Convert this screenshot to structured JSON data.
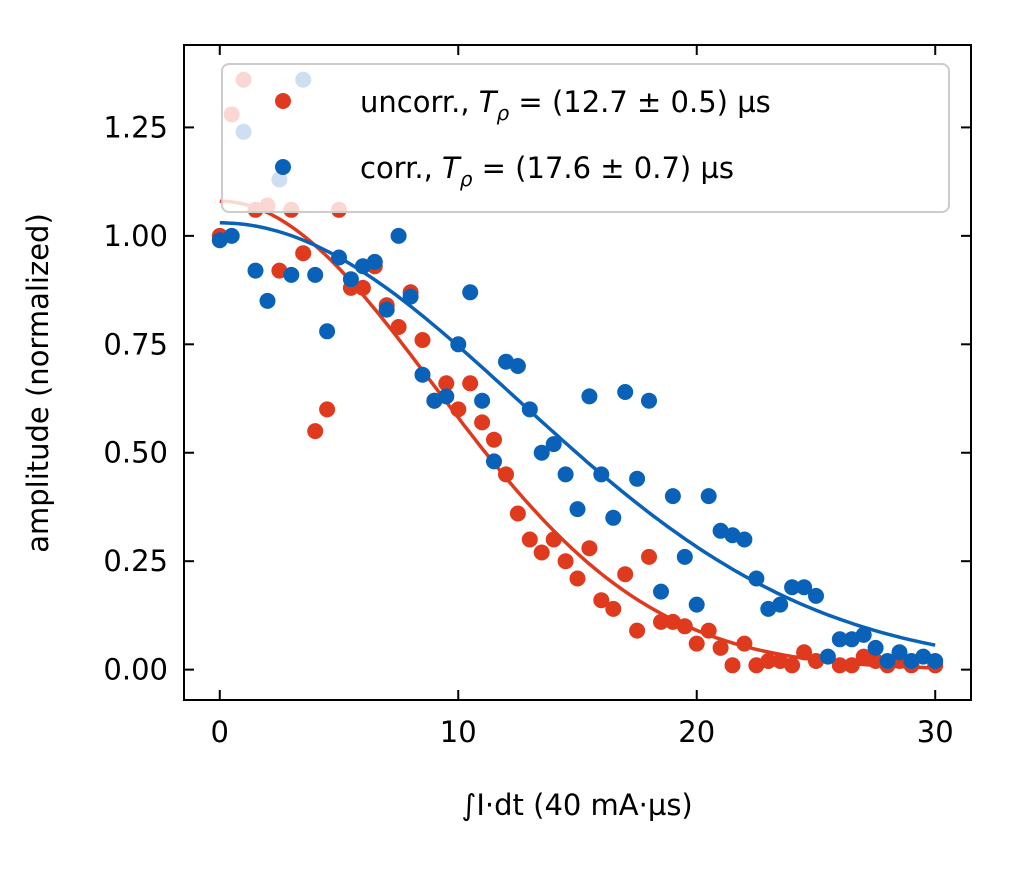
{
  "chart_data": {
    "type": "scatter",
    "xlabel": "∫I·dt (40 mA·µs)",
    "ylabel": "amplitude (normalized)",
    "xlim": [
      -1.5,
      31.5
    ],
    "ylim": [
      -0.07,
      1.44
    ],
    "xticks": [
      0,
      10,
      20,
      30
    ],
    "yticks": [
      0.0,
      0.25,
      0.5,
      0.75,
      1.0,
      1.25
    ],
    "xtick_labels": [
      "0",
      "10",
      "20",
      "30"
    ],
    "ytick_labels": [
      "0.00",
      "0.25",
      "0.50",
      "0.75",
      "1.00",
      "1.25"
    ],
    "grid": false,
    "legend_position": "top-right",
    "series": [
      {
        "name": "uncorr., Tρ = (12.7 ± 0.5) µs",
        "label_plain": "uncorr., ",
        "label_symbol": "T",
        "label_sub": "ρ",
        "label_rest": " = (12.7 ± 0.5) µs",
        "color": "#e03a1e",
        "fit_amplitude": 1.08,
        "fit_tau": 12.7,
        "points": [
          [
            0,
            1.0
          ],
          [
            0.5,
            1.28
          ],
          [
            1,
            1.36
          ],
          [
            1.5,
            1.06
          ],
          [
            2,
            1.07
          ],
          [
            2.5,
            0.92
          ],
          [
            3,
            1.06
          ],
          [
            3.5,
            0.96
          ],
          [
            4,
            0.55
          ],
          [
            4.5,
            0.6
          ],
          [
            5,
            1.06
          ],
          [
            5.5,
            0.88
          ],
          [
            6,
            0.88
          ],
          [
            6.5,
            0.93
          ],
          [
            7,
            0.84
          ],
          [
            7.5,
            0.79
          ],
          [
            8,
            0.87
          ],
          [
            8.5,
            0.76
          ],
          [
            9,
            0.62
          ],
          [
            9.5,
            0.66
          ],
          [
            10,
            0.6
          ],
          [
            10.5,
            0.66
          ],
          [
            11,
            0.57
          ],
          [
            11.5,
            0.53
          ],
          [
            12,
            0.45
          ],
          [
            12.5,
            0.36
          ],
          [
            13,
            0.3
          ],
          [
            13.5,
            0.27
          ],
          [
            14,
            0.3
          ],
          [
            14.5,
            0.25
          ],
          [
            15,
            0.21
          ],
          [
            15.5,
            0.28
          ],
          [
            16,
            0.16
          ],
          [
            16.5,
            0.14
          ],
          [
            17,
            0.22
          ],
          [
            17.5,
            0.09
          ],
          [
            18,
            0.26
          ],
          [
            18.5,
            0.11
          ],
          [
            19,
            0.11
          ],
          [
            19.5,
            0.1
          ],
          [
            20,
            0.06
          ],
          [
            20.5,
            0.09
          ],
          [
            21,
            0.05
          ],
          [
            21.5,
            0.01
          ],
          [
            22,
            0.06
          ],
          [
            22.5,
            0.01
          ],
          [
            23,
            0.02
          ],
          [
            23.5,
            0.02
          ],
          [
            24,
            0.01
          ],
          [
            24.5,
            0.04
          ],
          [
            25,
            0.02
          ],
          [
            26,
            0.01
          ],
          [
            26.5,
            0.01
          ],
          [
            27,
            0.03
          ],
          [
            27.5,
            0.02
          ],
          [
            28,
            0.01
          ],
          [
            28.5,
            0.02
          ],
          [
            29,
            0.01
          ],
          [
            30,
            0.01
          ]
        ]
      },
      {
        "name": "corr., Tρ = (17.6 ± 0.7) µs",
        "label_plain": "corr., ",
        "label_symbol": "T",
        "label_sub": "ρ",
        "label_rest": " = (17.6 ± 0.7) µs",
        "color": "#0a62b8",
        "fit_amplitude": 1.03,
        "fit_tau": 17.6,
        "points": [
          [
            0,
            0.99
          ],
          [
            0.5,
            1.0
          ],
          [
            1,
            1.24
          ],
          [
            1.5,
            0.92
          ],
          [
            2,
            0.85
          ],
          [
            2.5,
            1.13
          ],
          [
            3,
            0.91
          ],
          [
            3.5,
            1.36
          ],
          [
            4,
            0.91
          ],
          [
            4.5,
            0.78
          ],
          [
            5,
            0.95
          ],
          [
            5.5,
            0.9
          ],
          [
            6,
            0.93
          ],
          [
            6.5,
            0.94
          ],
          [
            7,
            0.83
          ],
          [
            7.5,
            1.0
          ],
          [
            8,
            0.86
          ],
          [
            8.5,
            0.68
          ],
          [
            9,
            0.62
          ],
          [
            9.5,
            0.63
          ],
          [
            10,
            0.75
          ],
          [
            10.5,
            0.87
          ],
          [
            11,
            0.62
          ],
          [
            11.5,
            0.48
          ],
          [
            12,
            0.71
          ],
          [
            12.5,
            0.7
          ],
          [
            13,
            0.6
          ],
          [
            13.5,
            0.5
          ],
          [
            14,
            0.52
          ],
          [
            14.5,
            0.45
          ],
          [
            15,
            0.37
          ],
          [
            15.5,
            0.63
          ],
          [
            16,
            0.45
          ],
          [
            16.5,
            0.35
          ],
          [
            17,
            0.64
          ],
          [
            17.5,
            0.44
          ],
          [
            18,
            0.62
          ],
          [
            18.5,
            0.18
          ],
          [
            19,
            0.4
          ],
          [
            19.5,
            0.26
          ],
          [
            20,
            0.15
          ],
          [
            20.5,
            0.4
          ],
          [
            21,
            0.32
          ],
          [
            21.5,
            0.31
          ],
          [
            22,
            0.3
          ],
          [
            22.5,
            0.21
          ],
          [
            23,
            0.14
          ],
          [
            23.5,
            0.15
          ],
          [
            24,
            0.19
          ],
          [
            24.5,
            0.19
          ],
          [
            25,
            0.17
          ],
          [
            25.5,
            0.03
          ],
          [
            26,
            0.07
          ],
          [
            26.5,
            0.07
          ],
          [
            27,
            0.08
          ],
          [
            27.5,
            0.05
          ],
          [
            28,
            0.02
          ],
          [
            28.5,
            0.04
          ],
          [
            29,
            0.02
          ],
          [
            29.5,
            0.03
          ],
          [
            30,
            0.02
          ]
        ]
      }
    ]
  }
}
